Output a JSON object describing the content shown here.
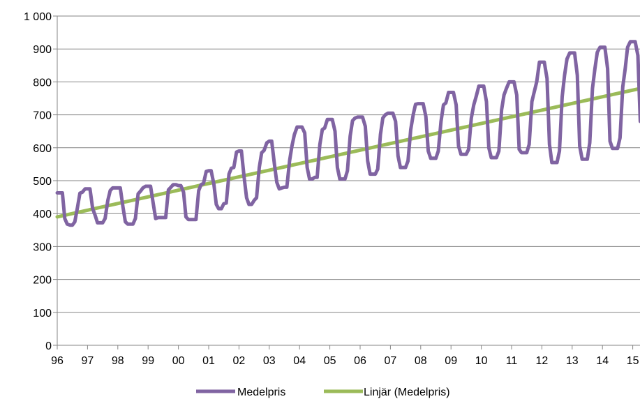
{
  "chart_data": {
    "type": "line",
    "title": "",
    "xlabel": "",
    "ylabel": "",
    "x_tick_labels": [
      "96",
      "97",
      "98",
      "99",
      "00",
      "01",
      "02",
      "03",
      "04",
      "05",
      "06",
      "07",
      "08",
      "09",
      "10",
      "11",
      "12",
      "13",
      "14",
      "15"
    ],
    "y_tick_labels": [
      "0",
      "100",
      "200",
      "300",
      "400",
      "500",
      "600",
      "700",
      "800",
      "900",
      "1 000"
    ],
    "ylim": [
      0,
      1000
    ],
    "xlim": [
      0,
      19.25
    ],
    "grid": true,
    "legend_position": "bottom",
    "series": [
      {
        "name": "Medelpris",
        "color": "#8064A2",
        "x": [
          0.0,
          0.08,
          0.17,
          0.25,
          0.33,
          0.42,
          0.5,
          0.58,
          0.67,
          0.75,
          0.83,
          0.92,
          1.0,
          1.08,
          1.17,
          1.25,
          1.33,
          1.42,
          1.5,
          1.58,
          1.67,
          1.75,
          1.83,
          1.92,
          2.0,
          2.08,
          2.17,
          2.25,
          2.33,
          2.42,
          2.5,
          2.58,
          2.67,
          2.75,
          2.83,
          2.92,
          3.0,
          3.08,
          3.17,
          3.25,
          3.33,
          3.42,
          3.5,
          3.58,
          3.67,
          3.75,
          3.83,
          3.92,
          4.0,
          4.08,
          4.17,
          4.25,
          4.33,
          4.42,
          4.5,
          4.58,
          4.67,
          4.75,
          4.83,
          4.92,
          5.0,
          5.08,
          5.17,
          5.25,
          5.33,
          5.42,
          5.5,
          5.58,
          5.67,
          5.75,
          5.83,
          5.92,
          6.0,
          6.08,
          6.17,
          6.25,
          6.33,
          6.42,
          6.5,
          6.58,
          6.67,
          6.75,
          6.83,
          6.92,
          7.0,
          7.08,
          7.17,
          7.25,
          7.33,
          7.42,
          7.5,
          7.58,
          7.67,
          7.75,
          7.83,
          7.92,
          8.0,
          8.08,
          8.17,
          8.25,
          8.33,
          8.42,
          8.5,
          8.58,
          8.67,
          8.75,
          8.83,
          8.92,
          9.0,
          9.08,
          9.17,
          9.25,
          9.33,
          9.42,
          9.5,
          9.58,
          9.67,
          9.75,
          9.83,
          9.92,
          10.0,
          10.08,
          10.17,
          10.25,
          10.33,
          10.42,
          10.5,
          10.58,
          10.67,
          10.75,
          10.83,
          10.92,
          11.0,
          11.08,
          11.17,
          11.25,
          11.33,
          11.42,
          11.5,
          11.58,
          11.67,
          11.75,
          11.83,
          11.92,
          12.0,
          12.08,
          12.17,
          12.25,
          12.33,
          12.42,
          12.5,
          12.58,
          12.67,
          12.75,
          12.83,
          12.92,
          13.0,
          13.08,
          13.17,
          13.25,
          13.33,
          13.42,
          13.5,
          13.58,
          13.67,
          13.75,
          13.83,
          13.92,
          14.0,
          14.08,
          14.17,
          14.25,
          14.33,
          14.42,
          14.5,
          14.58,
          14.67,
          14.75,
          14.83,
          14.92,
          15.0,
          15.08,
          15.17,
          15.25,
          15.33,
          15.42,
          15.5,
          15.58,
          15.67,
          15.75,
          15.83,
          15.92,
          16.0,
          16.08,
          16.17,
          16.25,
          16.33,
          16.42,
          16.5,
          16.58,
          16.67,
          16.75,
          16.83,
          16.92,
          17.0,
          17.08,
          17.17,
          17.25,
          17.33,
          17.42,
          17.5,
          17.58,
          17.67,
          17.75,
          17.83,
          17.92,
          18.0,
          18.08,
          18.17,
          18.25,
          18.33,
          18.42,
          18.5,
          18.58,
          18.67,
          18.75,
          18.83,
          18.92,
          19.0,
          19.08,
          19.17,
          19.25
        ],
        "y": [
          463,
          463,
          463,
          385,
          368,
          365,
          365,
          375,
          420,
          462,
          465,
          475,
          475,
          475,
          415,
          395,
          372,
          372,
          372,
          385,
          440,
          470,
          478,
          478,
          478,
          478,
          420,
          375,
          368,
          368,
          368,
          385,
          460,
          468,
          478,
          483,
          483,
          483,
          430,
          385,
          388,
          388,
          388,
          388,
          472,
          480,
          488,
          488,
          485,
          485,
          465,
          390,
          382,
          382,
          382,
          382,
          470,
          488,
          492,
          528,
          530,
          530,
          490,
          428,
          415,
          415,
          430,
          432,
          520,
          538,
          540,
          587,
          590,
          590,
          510,
          448,
          428,
          428,
          440,
          448,
          540,
          585,
          592,
          615,
          620,
          620,
          550,
          495,
          475,
          478,
          480,
          480,
          560,
          605,
          640,
          663,
          663,
          663,
          645,
          540,
          505,
          505,
          510,
          510,
          610,
          655,
          660,
          686,
          686,
          686,
          650,
          540,
          505,
          505,
          505,
          530,
          635,
          682,
          690,
          693,
          693,
          693,
          665,
          560,
          520,
          520,
          520,
          535,
          640,
          690,
          700,
          705,
          705,
          705,
          680,
          575,
          540,
          540,
          540,
          560,
          655,
          700,
          732,
          734,
          734,
          734,
          695,
          590,
          568,
          568,
          568,
          590,
          680,
          730,
          736,
          768,
          768,
          768,
          730,
          605,
          580,
          580,
          580,
          595,
          690,
          730,
          755,
          787,
          787,
          787,
          740,
          600,
          570,
          570,
          570,
          590,
          715,
          760,
          780,
          800,
          800,
          800,
          760,
          595,
          585,
          585,
          585,
          610,
          740,
          770,
          800,
          860,
          860,
          860,
          810,
          610,
          555,
          555,
          555,
          590,
          755,
          820,
          870,
          888,
          888,
          888,
          820,
          605,
          565,
          565,
          565,
          615,
          780,
          840,
          890,
          905,
          905,
          905,
          840,
          620,
          598,
          598,
          598,
          630,
          785,
          840,
          905,
          922,
          922,
          922,
          880,
          680
        ]
      },
      {
        "name": "Linjär (Medelpris)",
        "color": "#9BBB59",
        "x": [
          0,
          19.25
        ],
        "y": [
          390,
          780
        ]
      }
    ]
  }
}
